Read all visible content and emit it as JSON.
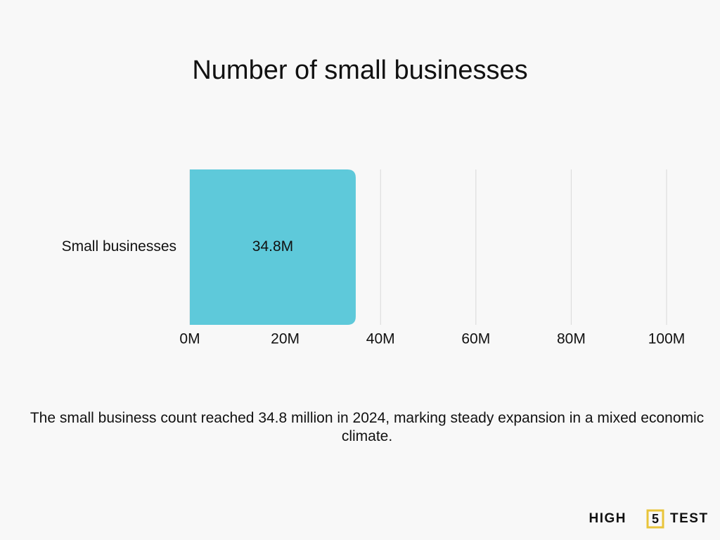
{
  "chart_data": {
    "type": "bar",
    "orientation": "horizontal",
    "title": "Number of small businesses",
    "categories": [
      "Small businesses"
    ],
    "values": [
      34.8
    ],
    "value_labels": [
      "34.8M"
    ],
    "color": "#5ec9da",
    "xlim": [
      0,
      100
    ],
    "xticks": [
      {
        "value": 0,
        "label": "0M"
      },
      {
        "value": 20,
        "label": "20M"
      },
      {
        "value": 40,
        "label": "40M"
      },
      {
        "value": 60,
        "label": "60M"
      },
      {
        "value": 80,
        "label": "80M"
      },
      {
        "value": 100,
        "label": "100M"
      }
    ],
    "grid": true,
    "annotation": "The small business count reached 34.8 million in 2024, marking steady expansion in a mixed economic climate."
  },
  "brand": {
    "left": "HIGH",
    "middle": "5",
    "right": "TEST"
  }
}
